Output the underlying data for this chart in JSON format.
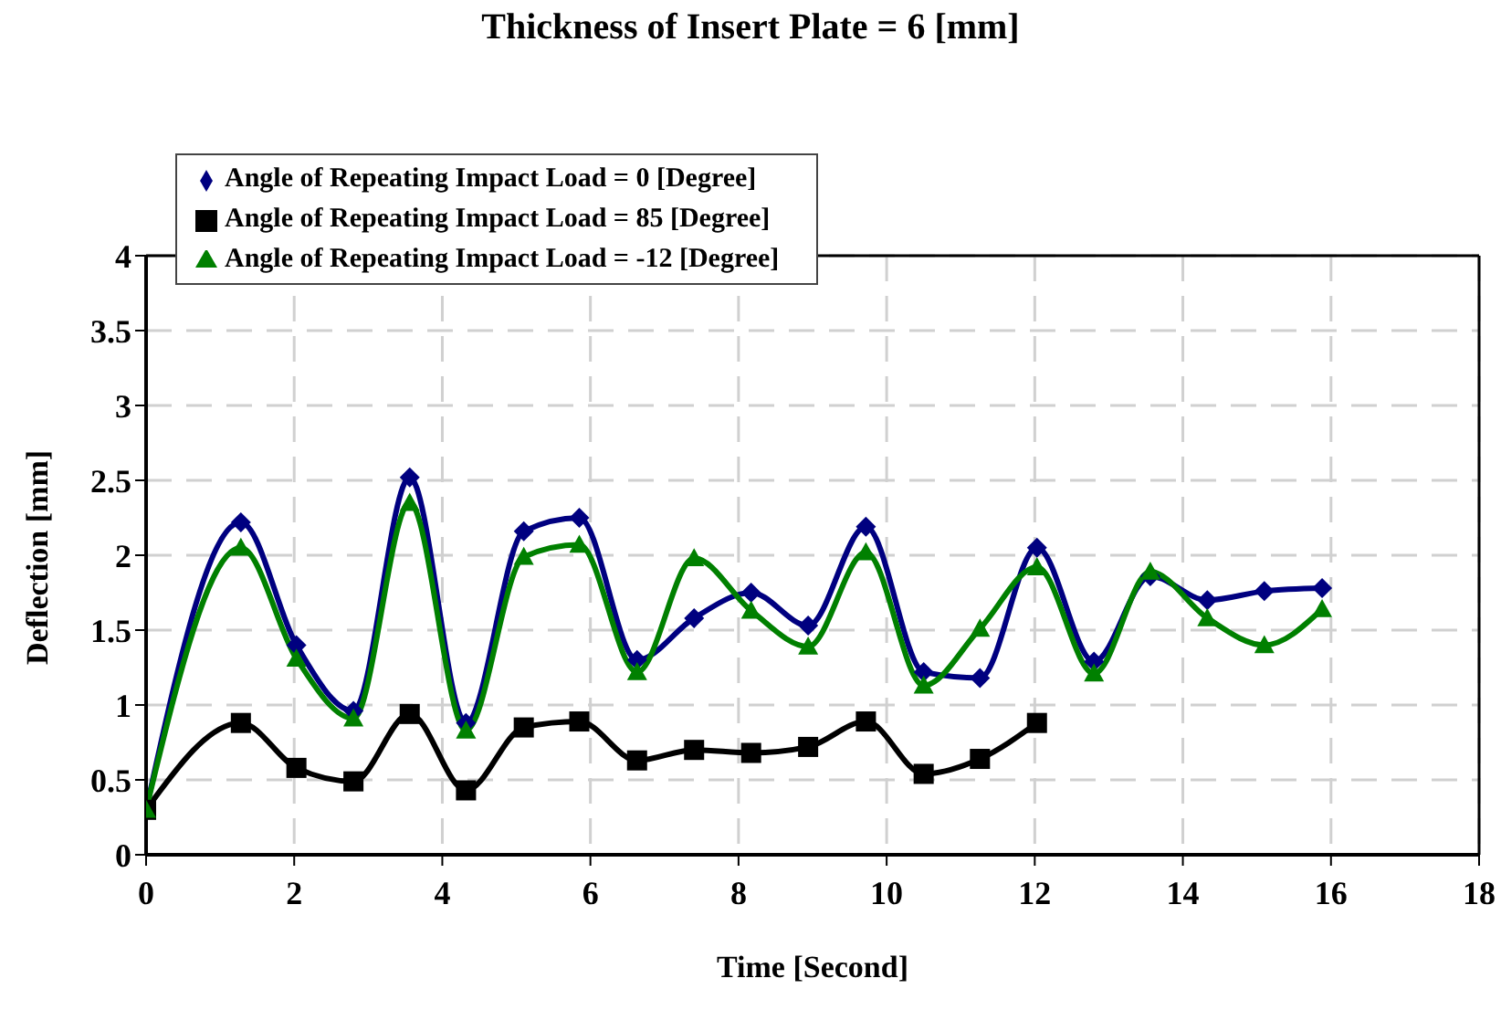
{
  "chart_data": {
    "type": "line",
    "title": "Thickness of Insert Plate = 6 [mm]",
    "xlabel": "Time [Second]",
    "ylabel": "Deflection [mm]",
    "xlim": [
      0,
      18
    ],
    "xticks": [
      0,
      2,
      4,
      6,
      8,
      10,
      12,
      14,
      16,
      18
    ],
    "ylim": [
      0,
      4
    ],
    "yticks": [
      0,
      0.5,
      1,
      1.5,
      2,
      2.5,
      3,
      3.5,
      4
    ],
    "grid": true,
    "legend": "top left",
    "x": [
      0,
      1.28,
      2.03,
      2.8,
      3.56,
      4.32,
      5.1,
      5.85,
      6.63,
      7.4,
      8.17,
      8.94,
      9.72,
      10.5,
      11.26,
      12.03,
      12.8,
      13.56,
      14.33,
      15.1,
      15.88
    ],
    "series": [
      {
        "name": "Angle of Repeating Impact Load = 0 [Degree]",
        "color": "#000080",
        "marker": "diamond",
        "values": [
          0.3,
          2.22,
          1.4,
          0.96,
          2.52,
          0.88,
          2.16,
          2.25,
          1.3,
          1.58,
          1.75,
          1.53,
          2.19,
          1.22,
          1.18,
          2.05,
          1.29,
          1.86,
          1.7,
          1.76,
          1.78
        ]
      },
      {
        "name": "Angle of Repeating Impact Load = 85 [Degree]",
        "color": "#000000",
        "marker": "square",
        "values": [
          0.3,
          0.88,
          0.58,
          0.49,
          0.94,
          0.43,
          0.85,
          0.89,
          0.63,
          0.7,
          0.68,
          0.72,
          0.89,
          0.54,
          0.64,
          0.88,
          null,
          null,
          null,
          null,
          null
        ]
      },
      {
        "name": "Angle of Repeating Impact Load = -12 [Degree]",
        "color": "#008000",
        "marker": "triangle",
        "values": [
          0.3,
          2.05,
          1.31,
          0.91,
          2.35,
          0.83,
          1.99,
          2.07,
          1.22,
          1.98,
          1.63,
          1.39,
          2.02,
          1.13,
          1.51,
          1.92,
          1.21,
          1.89,
          1.58,
          1.4,
          1.64
        ]
      }
    ]
  }
}
